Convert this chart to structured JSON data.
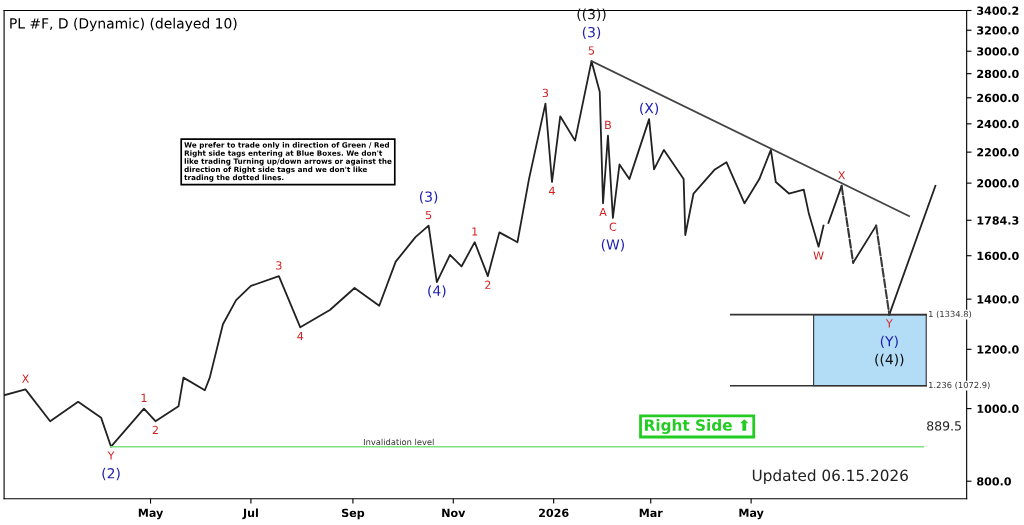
{
  "chart_data": {
    "type": "line",
    "title": "PL #F, D (Dynamic) (delayed 10)",
    "log": "y",
    "xlim": [
      "2025-02-01",
      "2026-09-09"
    ],
    "xticks": [
      {
        "value": "2025-05-01",
        "label": "May"
      },
      {
        "value": "2025-07-01",
        "label": "Jul"
      },
      {
        "value": "2025-09-01",
        "label": "Sep"
      },
      {
        "value": "2025-11-01",
        "label": "Nov"
      },
      {
        "value": "2026-01-01",
        "label": "2026"
      },
      {
        "value": "2026-03-01",
        "label": "Mar"
      },
      {
        "value": "2026-05-01",
        "label": "May"
      }
    ],
    "ylim": [
      758,
      3400.2
    ],
    "yticks": [
      {
        "value": 800,
        "label": "800.0"
      },
      {
        "value": 1000,
        "label": "1000.0"
      },
      {
        "value": 1200,
        "label": "1200.0"
      },
      {
        "value": 1400,
        "label": "1400.0"
      },
      {
        "value": 1600,
        "label": "1600.0"
      },
      1784.3,
      {
        "value": 2000,
        "label": "2000.0"
      },
      {
        "value": 2200,
        "label": "2200.0"
      },
      {
        "value": 2400,
        "label": "2400.0"
      },
      {
        "value": 2600,
        "label": "2600.0"
      },
      {
        "value": 2800,
        "label": "2800.0"
      },
      {
        "value": 3000,
        "label": "3000.0"
      },
      {
        "value": 3200,
        "label": "3200.0"
      },
      3400.2
    ],
    "grid": false,
    "series": [
      {
        "color": "#222222",
        "line_style": "solid",
        "x": [
          "2025-02-01",
          "2025-02-14",
          "2025-03-01",
          "2025-03-18",
          "2025-04-01",
          "2025-04-07",
          "2025-04-27",
          "2025-05-04",
          "2025-05-18",
          "2025-05-21",
          "2025-06-03",
          "2025-06-06",
          "2025-06-14",
          "2025-06-22",
          "2025-07-01",
          "2025-07-18",
          "2025-07-31",
          "2025-08-18",
          "2025-09-02",
          "2025-09-17",
          "2025-09-27",
          "2025-10-09",
          "2025-10-17",
          "2025-10-22",
          "2025-10-30",
          "2025-11-06",
          "2025-11-14",
          "2025-11-22",
          "2025-11-29",
          "2025-12-10",
          "2025-12-17",
          "2025-12-27",
          "2025-12-31",
          "2026-01-05",
          "2026-01-14",
          "2026-01-24",
          "2026-01-29",
          "2026-01-31",
          "2026-02-03",
          "2026-02-06",
          "2026-02-10",
          "2026-02-16",
          "2026-02-28",
          "2026-03-03",
          "2026-03-09",
          "2026-03-21",
          "2026-03-22",
          "2026-03-27",
          "2026-04-09",
          "2026-04-16",
          "2026-04-27",
          "2026-05-06",
          "2026-05-13",
          "2026-05-16",
          "2026-05-24",
          "2026-06-02",
          "2026-06-05",
          "2026-06-11",
          "2026-06-14"
        ],
        "values": [
          1042,
          1061,
          962,
          1021,
          972,
          889.5,
          1000,
          962,
          1007,
          1100,
          1058,
          1100,
          1296,
          1396,
          1458,
          1503,
          1284,
          1354,
          1449,
          1372,
          1571,
          1694,
          1755,
          1475,
          1604,
          1548,
          1668,
          1503,
          1719,
          1668,
          2025,
          2554,
          2007,
          2456,
          2279,
          2910,
          2648,
          1880,
          2315,
          1797,
          2118,
          2025,
          2435,
          2086,
          2215,
          2025,
          1705,
          1937,
          2086,
          2133,
          1880,
          2025,
          2215,
          2007,
          1937,
          1960,
          1825,
          1645,
          1755
        ]
      },
      {
        "color": "#444444",
        "line_style": "solid",
        "x": [
          "2026-01-24",
          "2026-08-05"
        ],
        "values": [
          2910,
          1807
        ]
      },
      {
        "color": "#222222",
        "line_style": "solid",
        "x": [
          "2026-06-17",
          "2026-06-25",
          "2026-06-28",
          "2026-07-02",
          "2026-07-16",
          "2026-07-20",
          "2026-07-24",
          "2026-08-21"
        ],
        "values": [
          1770,
          1983,
          null,
          1566,
          1755,
          null,
          1334.8,
          1983
        ]
      },
      {
        "color": "#333333",
        "line_style": "dashed",
        "x": [
          "2026-06-25",
          "2026-07-02"
        ],
        "values": [
          1983,
          1566
        ]
      },
      {
        "color": "#3a3a3a",
        "line_style": "dashed",
        "x": [
          "2026-07-16",
          "2026-07-24"
        ],
        "values": [
          1755,
          1334.8
        ]
      }
    ],
    "bands": [
      {
        "axis": "y",
        "from": 1072.9,
        "to": 1334.8,
        "color": "#b3dcf7"
      }
    ],
    "ref_lines": [
      {
        "axis": "y",
        "value": 1334.8,
        "label": "1 (1334.8)",
        "color": "#333333"
      },
      {
        "axis": "y",
        "value": 1072.9,
        "label": "1.236 (1072.9)",
        "color": "#333333"
      },
      {
        "axis": "y",
        "value": 889.5,
        "label": "Invalidation level",
        "color": "#7ee07e"
      }
    ],
    "annotations": [
      "We prefer to trade only in direction of Green / Red Right side tags entering at Blue Boxes. We don't like trading Turning up/down arrows or against the direction of Right side tags and we don't like trading the dotted lines.",
      "Right Side ⬆",
      "Updated 06.15.2026",
      "889.5",
      {
        "text": "X",
        "x": "2025-02-14",
        "y": 1061
      },
      {
        "text": "Y",
        "x": "2025-04-07",
        "y": 889.5
      },
      {
        "text": "(2)",
        "x": "2025-04-07",
        "y": 889.5
      },
      {
        "text": "1",
        "x": "2025-04-27",
        "y": 1000
      },
      {
        "text": "2",
        "x": "2025-05-04",
        "y": 962
      },
      {
        "text": "3",
        "x": "2025-07-18",
        "y": 1503
      },
      {
        "text": "4",
        "x": "2025-07-31",
        "y": 1284
      },
      {
        "text": "(3)",
        "x": "2025-10-17",
        "y": 1755
      },
      {
        "text": "5",
        "x": "2025-10-17",
        "y": 1755
      },
      {
        "text": "(4)",
        "x": "2025-10-22",
        "y": 1475
      },
      {
        "text": "1",
        "x": "2025-11-14",
        "y": 1668
      },
      {
        "text": "2",
        "x": "2025-11-22",
        "y": 1503
      },
      {
        "text": "3",
        "x": "2025-12-27",
        "y": 2554
      },
      {
        "text": "4",
        "x": "2025-12-31",
        "y": 2007
      },
      {
        "text": "((3))",
        "x": "2026-01-24",
        "y": 2910
      },
      {
        "text": "(3)",
        "x": "2026-01-24",
        "y": 2910
      },
      {
        "text": "5",
        "x": "2026-01-24",
        "y": 2910
      },
      {
        "text": "A",
        "x": "2026-01-31",
        "y": 1880
      },
      {
        "text": "B",
        "x": "2026-02-03",
        "y": 2315
      },
      {
        "text": "C",
        "x": "2026-02-06",
        "y": 1797
      },
      {
        "text": "(W)",
        "x": "2026-02-06",
        "y": 1797
      },
      {
        "text": "(X)",
        "x": "2026-02-28",
        "y": 2435
      },
      {
        "text": "W",
        "x": "2026-06-11",
        "y": 1645
      },
      {
        "text": "X",
        "x": "2026-06-25",
        "y": 1983
      },
      {
        "text": "Y",
        "x": "2026-07-24",
        "y": 1334.8
      },
      {
        "text": "(Y)",
        "x": "2026-07-24",
        "y": 1334.8
      },
      {
        "text": "((4))",
        "x": "2026-07-24",
        "y": 1334.8
      }
    ]
  }
}
